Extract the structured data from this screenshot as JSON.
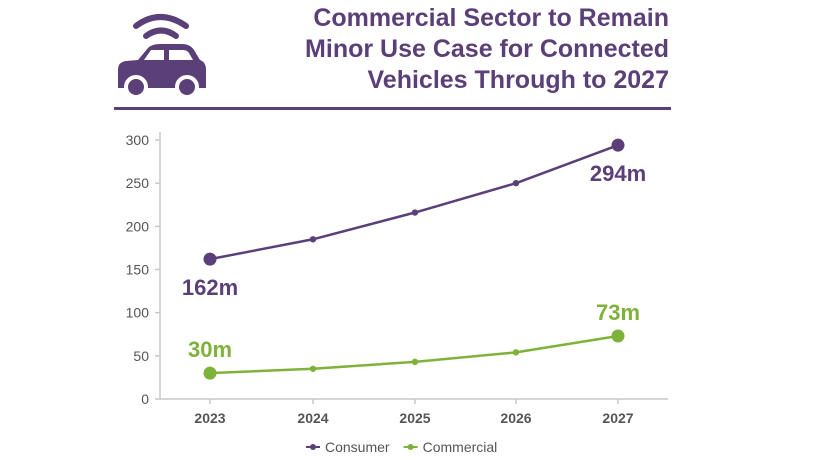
{
  "header": {
    "title_lines": [
      "Commercial Sector to Remain",
      "Minor Use Case for Connected",
      "Vehicles Through to 2027"
    ],
    "logo_icon": "connected-car-icon"
  },
  "colors": {
    "brand": "#5b3f78",
    "consumer": "#5b3f78",
    "commercial": "#7fb23a",
    "axis": "#c8c8c8",
    "tick": "#555555"
  },
  "chart_data": {
    "type": "line",
    "title": "Commercial Sector to Remain Minor Use Case for Connected Vehicles Through to 2027",
    "categories": [
      "2023",
      "2024",
      "2025",
      "2026",
      "2027"
    ],
    "ylim": [
      0,
      300
    ],
    "yticks": [
      0,
      50,
      100,
      150,
      200,
      250,
      300
    ],
    "xlabel": "",
    "ylabel": "",
    "grid": false,
    "legend_position": "bottom-center",
    "series": [
      {
        "name": "Consumer",
        "values": [
          162,
          185,
          216,
          250,
          294
        ],
        "color": "#5b3f78",
        "labels": [
          {
            "index": 0,
            "text": "162m",
            "placement": "below"
          },
          {
            "index": 4,
            "text": "294m",
            "placement": "below"
          }
        ]
      },
      {
        "name": "Commercial",
        "values": [
          30,
          35,
          43,
          54,
          73
        ],
        "color": "#7fb23a",
        "labels": [
          {
            "index": 0,
            "text": "30m",
            "placement": "above"
          },
          {
            "index": 4,
            "text": "73m",
            "placement": "above"
          }
        ]
      }
    ]
  }
}
